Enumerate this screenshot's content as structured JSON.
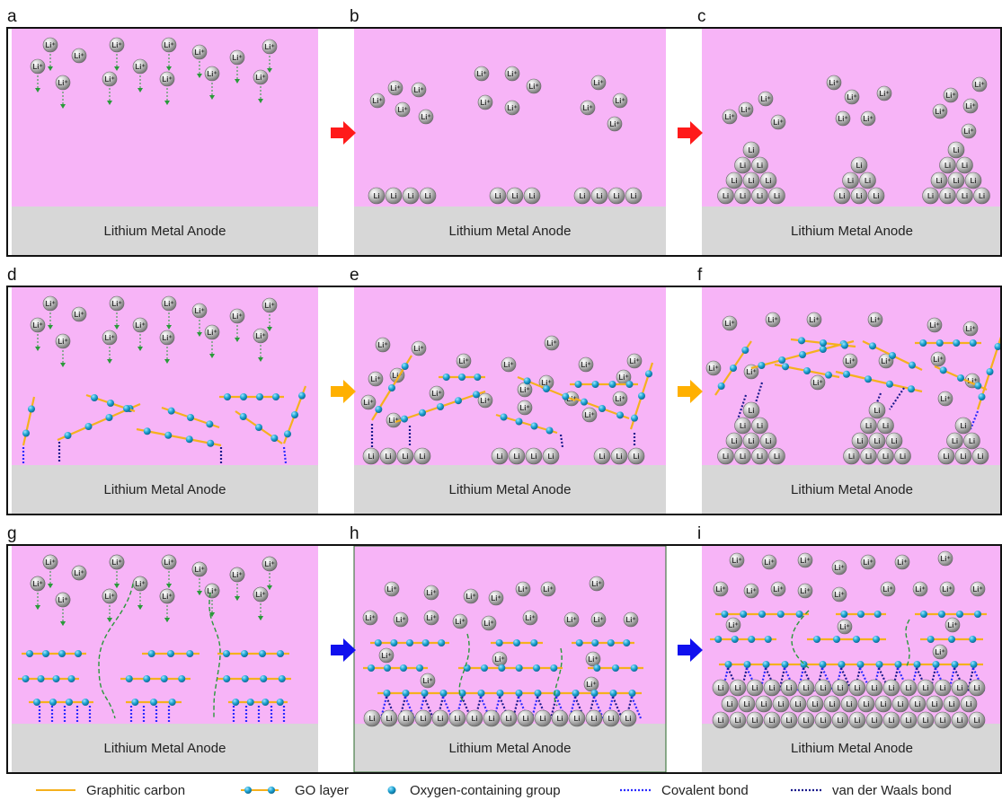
{
  "panels": [
    {
      "label": "a",
      "anode_label": "Lithium Metal Anode"
    },
    {
      "label": "b",
      "anode_label": "Lithium Metal Anode"
    },
    {
      "label": "c",
      "anode_label": "Lithium Metal Anode"
    },
    {
      "label": "d",
      "anode_label": "Lithium Metal Anode"
    },
    {
      "label": "e",
      "anode_label": "Lithium Metal Anode"
    },
    {
      "label": "f",
      "anode_label": "Lithium Metal Anode"
    },
    {
      "label": "g",
      "anode_label": "Lithium Metal Anode"
    },
    {
      "label": "h",
      "anode_label": "Lithium Metal Anode"
    },
    {
      "label": "i",
      "anode_label": "Lithium Metal Anode"
    }
  ],
  "ion_labels": {
    "cation": "Li⁺",
    "metal": "Li"
  },
  "arrows": [
    {
      "row": 1,
      "color": "#ff1a1a"
    },
    {
      "row": 2,
      "color": "#ffb000"
    },
    {
      "row": 3,
      "color": "#1010ee"
    }
  ],
  "legend": [
    {
      "label": "Graphitic carbon",
      "icon": "orange-line"
    },
    {
      "label": "GO layer",
      "icon": "go-layer"
    },
    {
      "label": "Oxygen-containing group",
      "icon": "blue-dot"
    },
    {
      "label": "Covalent bond",
      "icon": "blue-dotted-line"
    },
    {
      "label": "van der Waals bond",
      "icon": "navy-dotted-line"
    }
  ],
  "colors": {
    "electrolyte": "#f7b4f7",
    "anode": "#d7d7d7",
    "graphitic_carbon": "#f5b01d",
    "oxygen_group": "#1aa0d0",
    "covalent_bond": "#2a2aff",
    "vdw_bond": "#1a1a8c",
    "diffusion_arrow": "#2a9a3a"
  }
}
